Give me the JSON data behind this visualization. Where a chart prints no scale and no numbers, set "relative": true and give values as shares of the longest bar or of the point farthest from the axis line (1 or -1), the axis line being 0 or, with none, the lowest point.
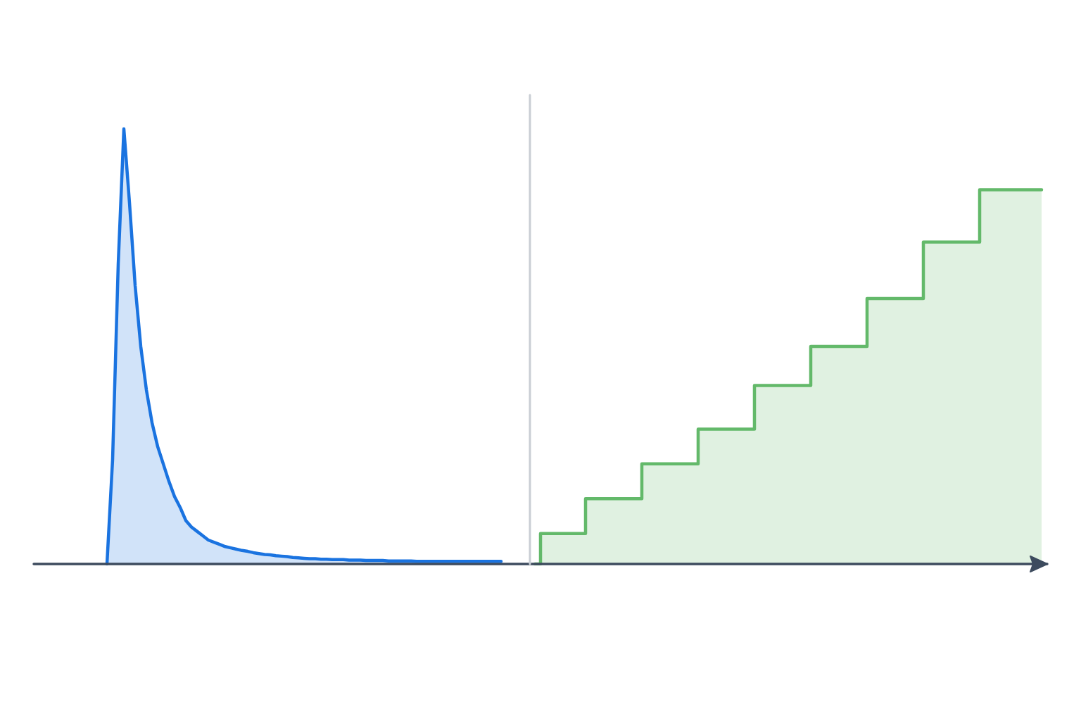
{
  "chart_data": {
    "type": "area",
    "relative": true,
    "grid": false,
    "categories": [
      null,
      null,
      null,
      null,
      null,
      null,
      null,
      null,
      null,
      null,
      null,
      null,
      null,
      null,
      null,
      null,
      null,
      null,
      null,
      null,
      null,
      null,
      null,
      null,
      null,
      null,
      null,
      null,
      null,
      null,
      null,
      null,
      null,
      null,
      null,
      null,
      null,
      null,
      null,
      null,
      null,
      null,
      null,
      null,
      null,
      null,
      null,
      null,
      null,
      null,
      null,
      null,
      null,
      null,
      null,
      null,
      null,
      null,
      null,
      null,
      null,
      null,
      null,
      null,
      null,
      null,
      null,
      null,
      null,
      null,
      null,
      null,
      null,
      null,
      null,
      null,
      null,
      null,
      null,
      null,
      null,
      null,
      null,
      null,
      null,
      null,
      null,
      null,
      null,
      null,
      null,
      null,
      null,
      null,
      null,
      null,
      null,
      null,
      null,
      null,
      null,
      null,
      null,
      null,
      null,
      null,
      null,
      null,
      null,
      null,
      null,
      null,
      null,
      null,
      null,
      null,
      null,
      null,
      null,
      null,
      null,
      null,
      null,
      null,
      null,
      null,
      null,
      null,
      null,
      null,
      null,
      null,
      null,
      null,
      null,
      null,
      null,
      null,
      null,
      null,
      null,
      null,
      null,
      null,
      null,
      null,
      null,
      null,
      null,
      null,
      null,
      null,
      null,
      null,
      null,
      null,
      null,
      null,
      null,
      null,
      null,
      null,
      null,
      null,
      null,
      null,
      null,
      null,
      null,
      null,
      null,
      null,
      null,
      null,
      null,
      null,
      null,
      null,
      null,
      null,
      null
    ],
    "series": [
      {
        "color": "#1a73e0",
        "values": [
          null,
          null,
          null,
          null,
          null,
          null,
          null,
          null,
          null,
          null,
          null,
          null,
          null,
          0,
          0.24,
          0.69,
          1,
          0.83,
          0.64,
          0.5,
          0.4,
          0.325,
          0.27,
          0.23,
          0.19,
          0.155,
          0.13,
          0.1,
          0.085,
          0.075,
          0.065,
          0.055,
          0.05,
          0.045,
          0.04,
          0.037,
          0.034,
          0.031,
          0.029,
          0.026,
          0.024,
          0.022,
          0.021,
          0.019,
          0.018,
          0.017,
          0.015,
          0.014,
          0.013,
          0.012,
          0.012,
          0.011,
          0.011,
          0.01,
          0.01,
          0.01,
          0.009,
          0.009,
          0.009,
          0.008,
          0.008,
          0.008,
          0.008,
          0.007,
          0.007,
          0.007,
          0.007,
          0.007,
          0.006,
          0.006,
          0.006,
          0.006,
          0.006,
          0.006,
          0.006,
          0.006,
          0.006,
          0.006,
          0.006,
          0.006,
          0.006,
          0.006,
          0.006,
          0.006,
          null,
          null,
          null,
          null,
          null,
          null,
          null,
          null,
          null,
          null,
          null,
          null,
          null,
          null,
          null,
          null,
          null,
          null,
          null,
          null,
          null,
          null,
          null,
          null,
          null,
          null,
          null,
          null,
          null,
          null,
          null,
          null,
          null,
          null,
          null,
          null,
          null,
          null,
          null,
          null,
          null,
          null,
          null,
          null,
          null,
          null,
          null,
          null,
          null,
          null,
          null,
          null,
          null,
          null,
          null,
          null,
          null,
          null,
          null,
          null,
          null,
          null,
          null,
          null,
          null,
          null,
          null,
          null,
          null,
          null,
          null,
          null,
          null,
          null,
          null,
          null,
          null,
          null,
          null,
          null,
          null,
          null,
          null,
          null,
          null,
          null,
          null,
          null,
          null,
          null,
          null,
          null,
          null,
          null,
          null,
          null,
          null
        ]
      },
      {
        "type": "step",
        "color": "#63b96a",
        "values": [
          null,
          null,
          null,
          null,
          null,
          null,
          null,
          null,
          null,
          null,
          null,
          null,
          null,
          null,
          null,
          null,
          null,
          null,
          null,
          null,
          null,
          null,
          null,
          null,
          null,
          null,
          null,
          null,
          null,
          null,
          null,
          null,
          null,
          null,
          null,
          null,
          null,
          null,
          null,
          null,
          null,
          null,
          null,
          null,
          null,
          null,
          null,
          null,
          null,
          null,
          null,
          null,
          null,
          null,
          null,
          null,
          null,
          null,
          null,
          null,
          null,
          null,
          null,
          null,
          null,
          null,
          null,
          null,
          null,
          null,
          null,
          null,
          null,
          null,
          null,
          null,
          null,
          null,
          null,
          null,
          null,
          null,
          null,
          null,
          null,
          null,
          null,
          null,
          null,
          0,
          0.07,
          0.07,
          0.07,
          0.07,
          0.07,
          0.07,
          0.07,
          0.07,
          0.15,
          0.15,
          0.15,
          0.15,
          0.15,
          0.15,
          0.15,
          0.15,
          0.15,
          0.15,
          0.23,
          0.23,
          0.23,
          0.23,
          0.23,
          0.23,
          0.23,
          0.23,
          0.23,
          0.23,
          0.31,
          0.31,
          0.31,
          0.31,
          0.31,
          0.31,
          0.31,
          0.31,
          0.31,
          0.31,
          0.41,
          0.41,
          0.41,
          0.41,
          0.41,
          0.41,
          0.41,
          0.41,
          0.41,
          0.41,
          0.5,
          0.5,
          0.5,
          0.5,
          0.5,
          0.5,
          0.5,
          0.5,
          0.5,
          0.5,
          0.61,
          0.61,
          0.61,
          0.61,
          0.61,
          0.61,
          0.61,
          0.61,
          0.61,
          0.61,
          0.74,
          0.74,
          0.74,
          0.74,
          0.74,
          0.74,
          0.74,
          0.74,
          0.74,
          0.74,
          0.86,
          0.86,
          0.86,
          0.86,
          0.86,
          0.86,
          0.86,
          0.86,
          0.86,
          0.86,
          0.86,
          0.86,
          null
        ]
      }
    ]
  }
}
